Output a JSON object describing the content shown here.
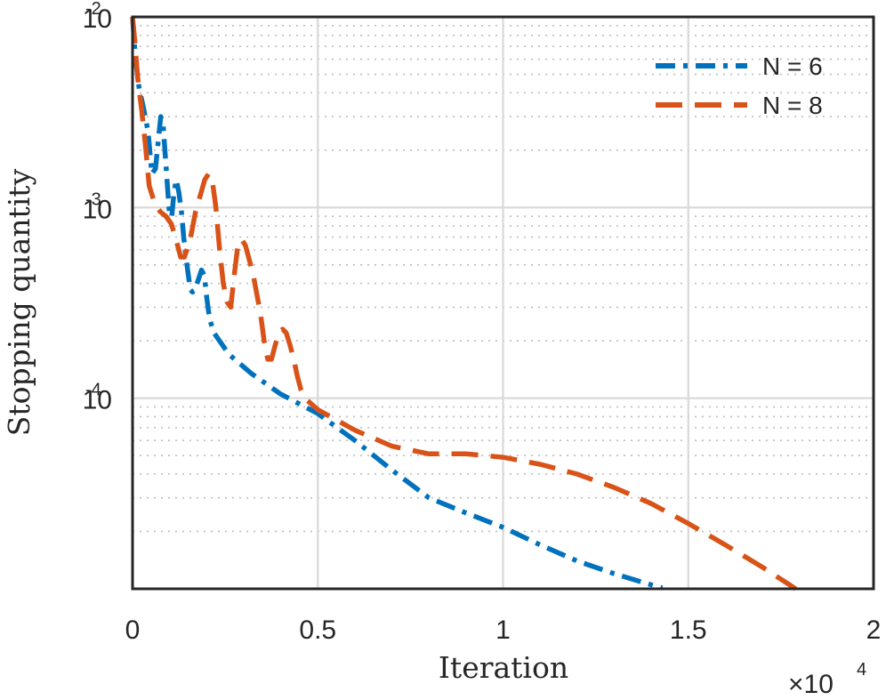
{
  "chart_data": {
    "type": "line",
    "title": "",
    "xlabel": "Iteration",
    "ylabel": "Stopping quantity",
    "x_multiplier_label": "×10",
    "x_multiplier_exponent": "4",
    "xlim": [
      0,
      20000
    ],
    "ylim": [
      1e-05,
      0.01
    ],
    "yscale": "log",
    "grid": true,
    "minor_grid": true,
    "legend_position": "top-right",
    "x_ticks": [
      {
        "value": 0,
        "label": "0"
      },
      {
        "value": 5000,
        "label": "0.5"
      },
      {
        "value": 10000,
        "label": "1"
      },
      {
        "value": 15000,
        "label": "1.5"
      },
      {
        "value": 20000,
        "label": "2"
      }
    ],
    "y_ticks": [
      {
        "value": 0.01,
        "base": "10",
        "exp": "-2"
      },
      {
        "value": 0.001,
        "base": "10",
        "exp": "-3"
      },
      {
        "value": 0.0001,
        "base": "10",
        "exp": "-4"
      }
    ],
    "series": [
      {
        "name": "N = 6",
        "color": "#0072BD",
        "dash": "dashdot",
        "x": [
          0,
          80,
          180,
          300,
          420,
          520,
          620,
          700,
          760,
          820,
          880,
          940,
          1000,
          1060,
          1120,
          1180,
          1250,
          1320,
          1380,
          1440,
          1500,
          1560,
          1620,
          1700,
          1780,
          1860,
          1940,
          2000,
          2080,
          2200,
          2600,
          3200,
          4000,
          5000,
          6000,
          7000,
          8000,
          9000,
          10000,
          11000,
          12000,
          13000,
          14000,
          14300
        ],
        "y": [
          0.01,
          0.006,
          0.0042,
          0.0033,
          0.0025,
          0.0015,
          0.0016,
          0.0023,
          0.003,
          0.0028,
          0.0019,
          0.0013,
          0.0009,
          0.0009,
          0.0012,
          0.0014,
          0.0012,
          0.00095,
          0.0007,
          0.00055,
          0.00045,
          0.00037,
          0.00036,
          0.00038,
          0.00042,
          0.00047,
          0.00044,
          0.00034,
          0.00026,
          0.00022,
          0.00017,
          0.000135,
          0.000105,
          8.3e-05,
          6e-05,
          4.2e-05,
          3e-05,
          2.5e-05,
          2.1e-05,
          1.7e-05,
          1.4e-05,
          1.2e-05,
          1.05e-05,
          1.01e-05
        ]
      },
      {
        "name": "N = 8",
        "color": "#D95319",
        "dash": "dashed",
        "x": [
          0,
          60,
          140,
          250,
          350,
          450,
          600,
          750,
          900,
          1050,
          1200,
          1300,
          1400,
          1550,
          1700,
          1850,
          1950,
          2050,
          2150,
          2250,
          2350,
          2450,
          2550,
          2650,
          2750,
          2850,
          2950,
          3050,
          3250,
          3450,
          3550,
          3650,
          3750,
          3850,
          3950,
          4050,
          4150,
          4250,
          4350,
          4450,
          4550,
          4650,
          5000,
          6000,
          7000,
          8000,
          9000,
          10000,
          11000,
          12000,
          13000,
          14000,
          15000,
          16000,
          17000,
          17900
        ],
        "y": [
          0.01,
          0.0075,
          0.0048,
          0.0032,
          0.0021,
          0.0013,
          0.00105,
          0.00095,
          0.0009,
          0.00082,
          0.00065,
          0.00055,
          0.00055,
          0.00067,
          0.00095,
          0.0012,
          0.0014,
          0.0015,
          0.0014,
          0.001,
          0.0006,
          0.0004,
          0.00032,
          0.0003,
          0.00045,
          0.00065,
          0.00068,
          0.00063,
          0.00045,
          0.00028,
          0.0002,
          0.00016,
          0.00016,
          0.00019,
          0.00022,
          0.00023,
          0.00022,
          0.00019,
          0.00016,
          0.00013,
          0.00011,
          0.0001,
          8.7e-05,
          6.8e-05,
          5.6e-05,
          5.1e-05,
          5.1e-05,
          4.9e-05,
          4.5e-05,
          4e-05,
          3.4e-05,
          2.8e-05,
          2.2e-05,
          1.7e-05,
          1.3e-05,
          1e-05
        ]
      }
    ]
  }
}
